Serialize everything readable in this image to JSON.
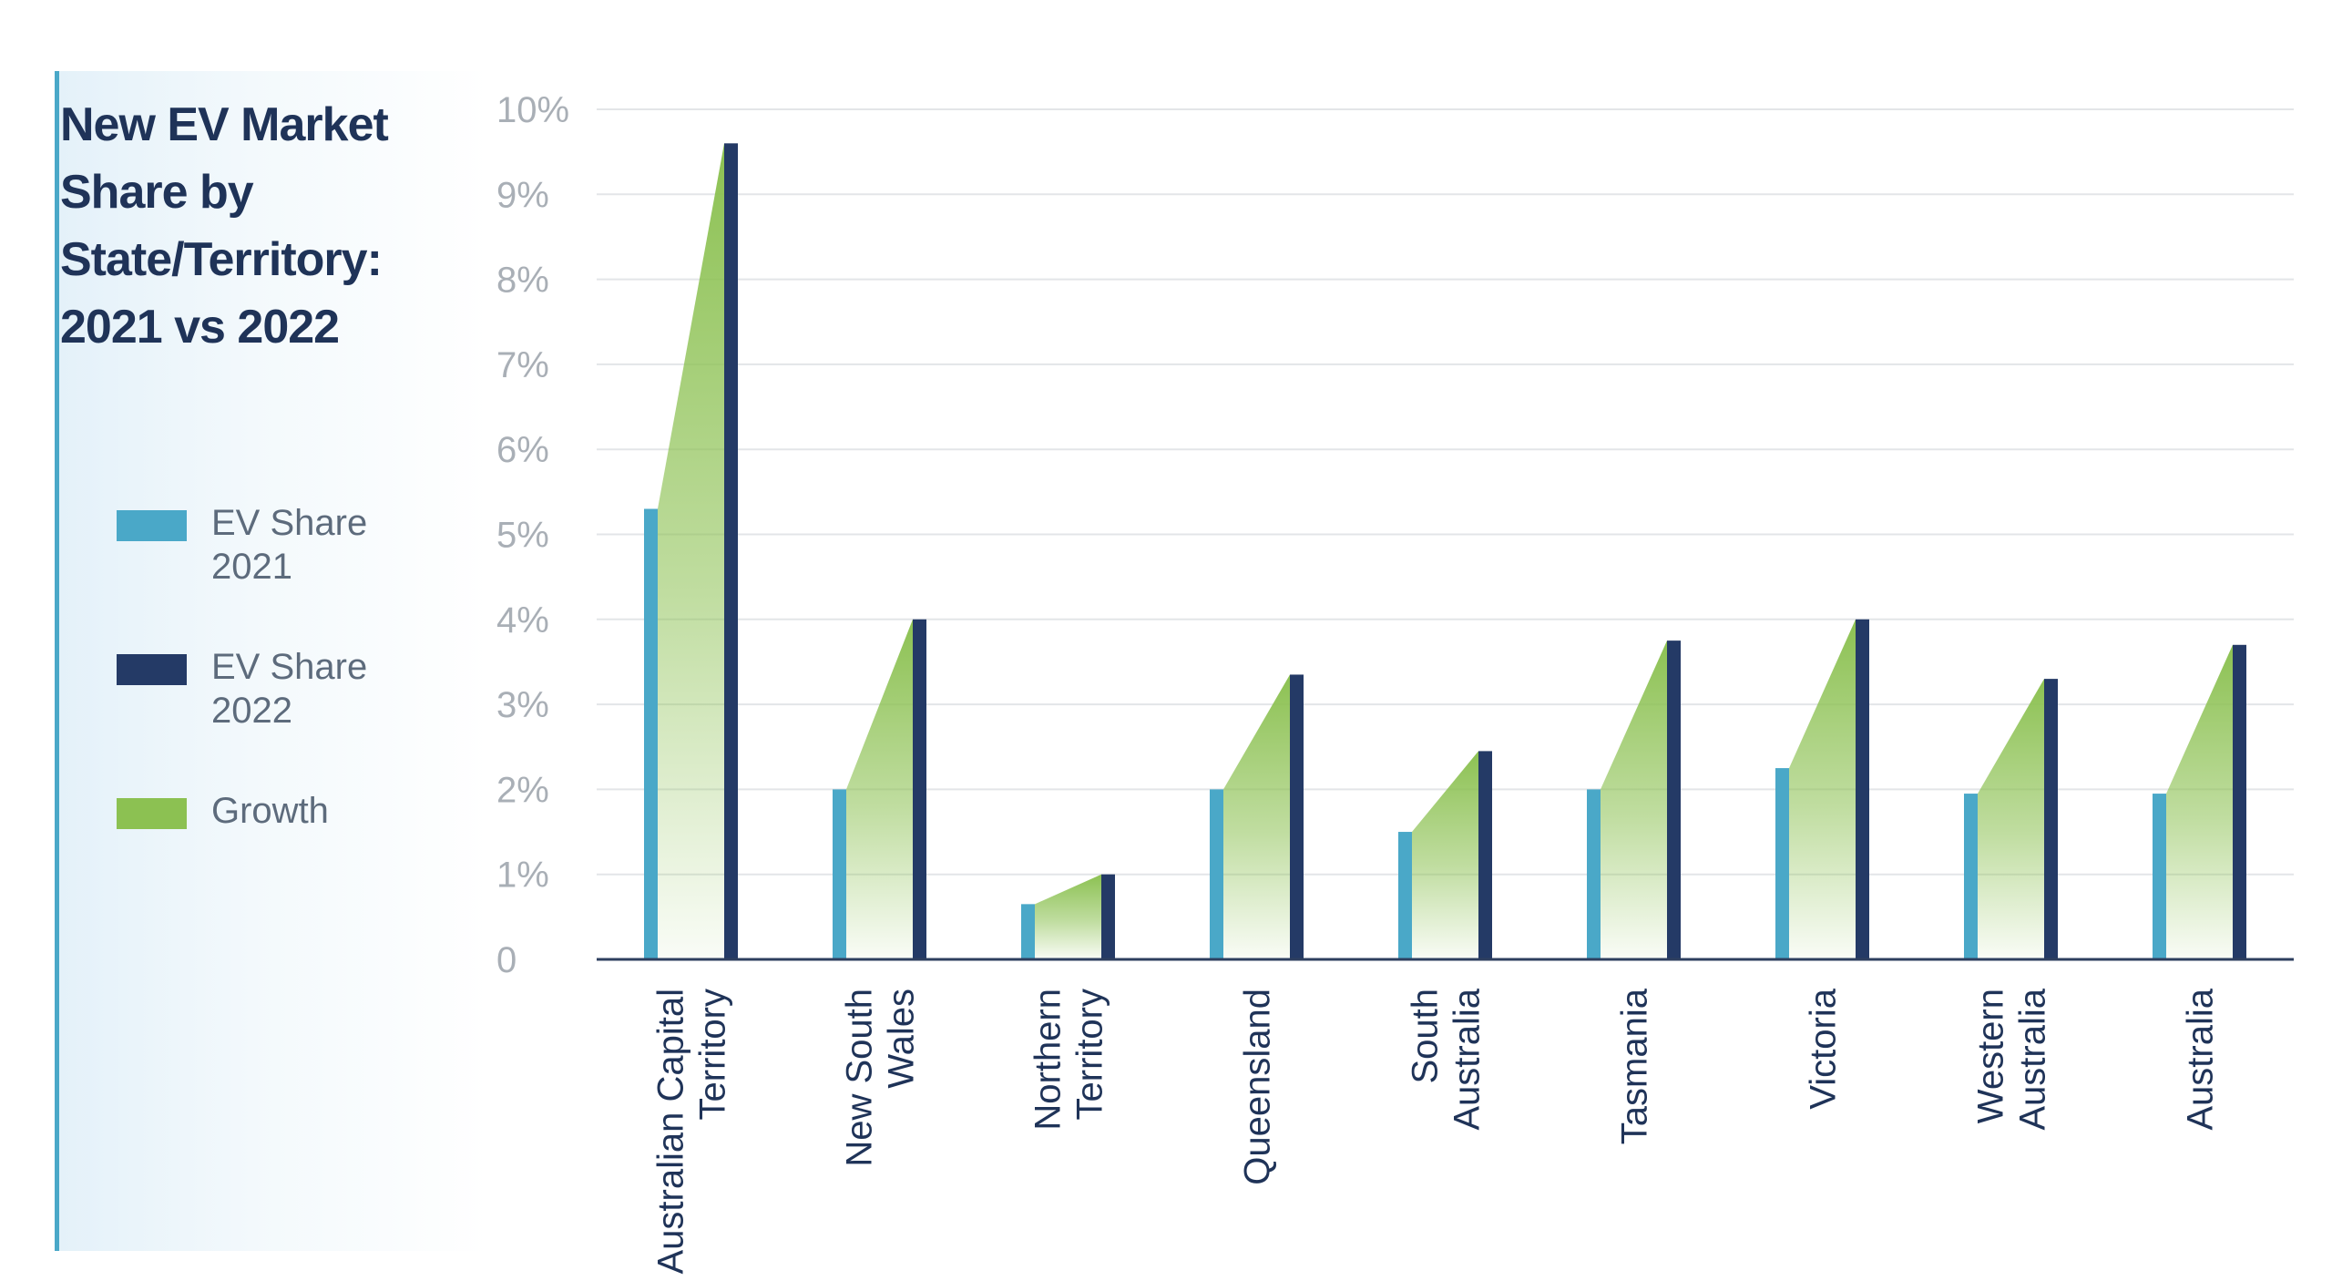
{
  "colors": {
    "ev2021": "#4aa8c8",
    "ev2022": "#243a66",
    "growth": "#8cc152",
    "grid": "#e3e5e8",
    "axis": "#2e3f5f"
  },
  "chart_data": {
    "type": "bar",
    "title": "New EV Market Share by State/Territory: 2021 vs 2022",
    "categories": [
      [
        "Australian Capital",
        "Territory"
      ],
      [
        "New South",
        "Wales"
      ],
      [
        "Northern",
        "Territory"
      ],
      [
        "Queensland"
      ],
      [
        "South",
        "Australia"
      ],
      [
        "Tasmania"
      ],
      [
        "Victoria"
      ],
      [
        "Western",
        "Australia"
      ],
      [
        "Australia"
      ]
    ],
    "series": [
      {
        "name": "EV Share 2021",
        "values": [
          5.3,
          2.0,
          0.65,
          2.0,
          1.5,
          2.0,
          2.25,
          1.95,
          1.95
        ]
      },
      {
        "name": "EV Share 2022",
        "values": [
          9.6,
          4.0,
          1.0,
          3.35,
          2.45,
          3.75,
          4.0,
          3.3,
          3.7
        ]
      }
    ],
    "legend": [
      {
        "lines": [
          "EV Share",
          "2021"
        ],
        "color_key": "ev2021"
      },
      {
        "lines": [
          "EV Share",
          "2022"
        ],
        "color_key": "ev2022"
      },
      {
        "lines": [
          "Growth"
        ],
        "color_key": "growth"
      }
    ],
    "ylim": [
      0,
      10
    ],
    "yticks": [
      0,
      1,
      2,
      3,
      4,
      5,
      6,
      7,
      8,
      9,
      10
    ],
    "ytick_labels": [
      "0",
      "1%",
      "2%",
      "3%",
      "4%",
      "5%",
      "6%",
      "7%",
      "8%",
      "9%",
      "10%"
    ],
    "legend_position": "left",
    "grid": true
  }
}
